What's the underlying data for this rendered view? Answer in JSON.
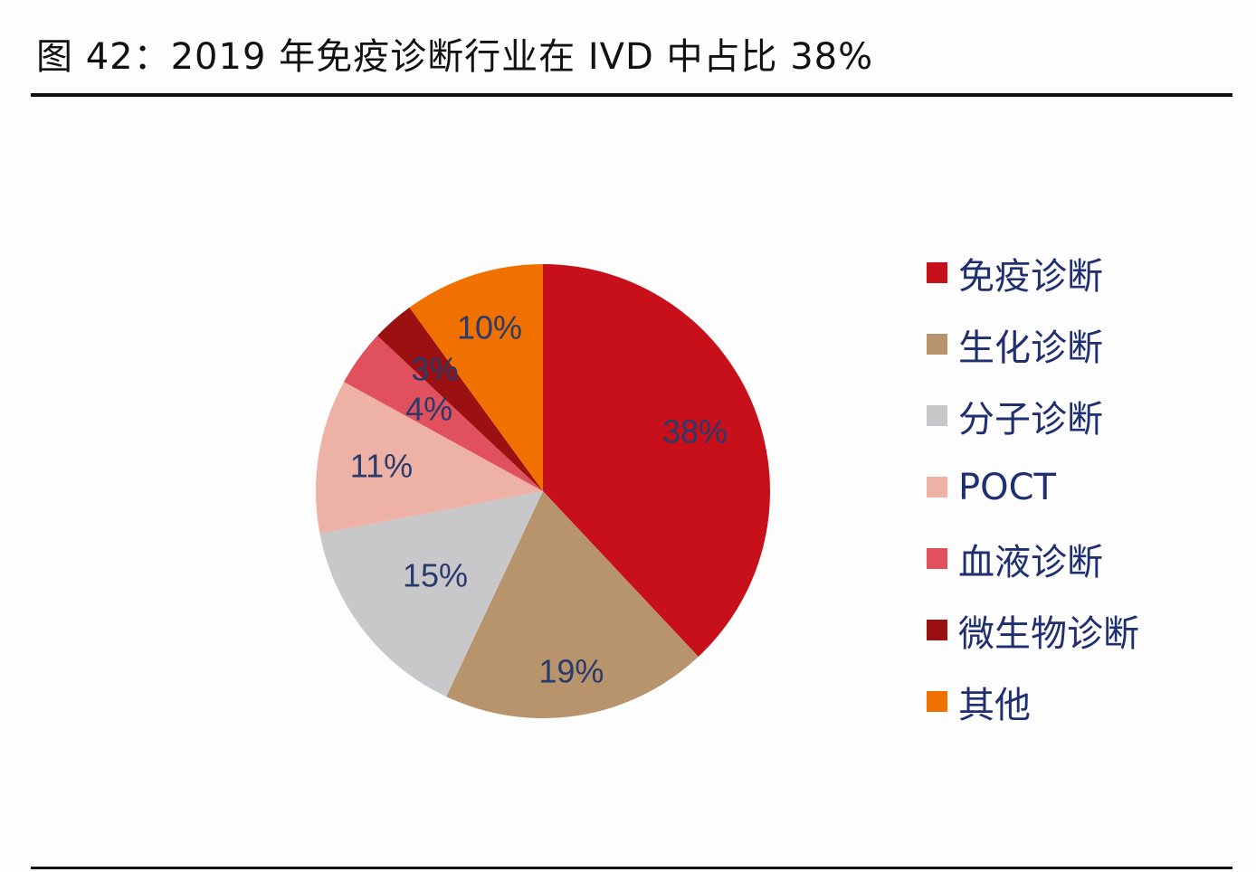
{
  "title": "图 42：2019 年免疫诊断行业在 IVD 中占比 38%",
  "chart_data": {
    "type": "pie",
    "title": "",
    "start": "top",
    "direction": "clockwise",
    "legend_position": "right",
    "label_color": "#2a3a6a",
    "slices": [
      {
        "name": "免疫诊断",
        "value": 38,
        "label": "38%",
        "color": "#c8101a"
      },
      {
        "name": "生化诊断",
        "value": 19,
        "label": "19%",
        "color": "#b8946c"
      },
      {
        "name": "分子诊断",
        "value": 15,
        "label": "15%",
        "color": "#c8c8cb"
      },
      {
        "name": "POCT",
        "value": 11,
        "label": "11%",
        "color": "#eeb1a5"
      },
      {
        "name": "血液诊断",
        "value": 4,
        "label": "4%",
        "color": "#e0505d"
      },
      {
        "name": "微生物诊断",
        "value": 3,
        "label": "3%",
        "color": "#9b1111"
      },
      {
        "name": "其他",
        "value": 10,
        "label": "10%",
        "color": "#f07000"
      }
    ]
  }
}
